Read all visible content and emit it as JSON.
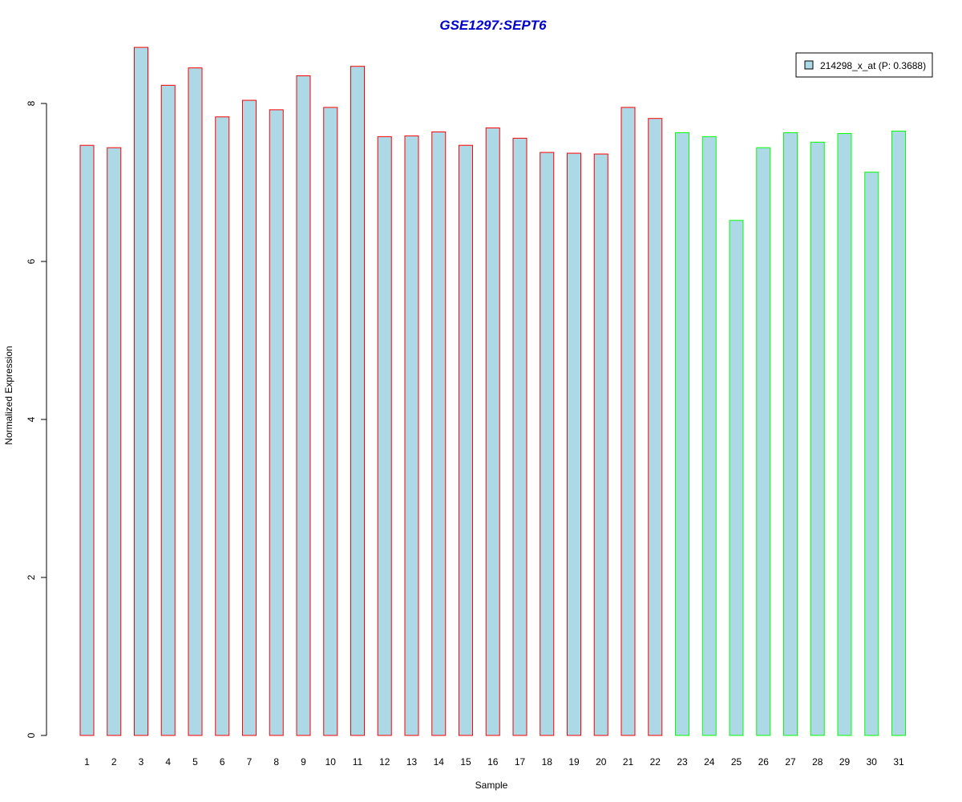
{
  "chart_data": {
    "type": "bar",
    "title": "GSE1297:SEPT6",
    "xlabel": "Sample",
    "ylabel": "Normalized Expression",
    "ylim": [
      0,
      8.7
    ],
    "yticks": [
      0,
      2,
      4,
      6,
      8
    ],
    "categories": [
      "1",
      "2",
      "3",
      "4",
      "5",
      "6",
      "7",
      "8",
      "9",
      "10",
      "11",
      "12",
      "13",
      "14",
      "15",
      "16",
      "17",
      "18",
      "19",
      "20",
      "21",
      "22",
      "23",
      "24",
      "25",
      "26",
      "27",
      "28",
      "29",
      "30",
      "31"
    ],
    "series": [
      {
        "name": "214298_x_at (P: 0.3688)",
        "values": [
          7.47,
          7.44,
          8.71,
          8.23,
          8.45,
          7.83,
          8.04,
          7.92,
          8.35,
          7.95,
          8.47,
          7.58,
          7.59,
          7.64,
          7.47,
          7.69,
          7.56,
          7.38,
          7.37,
          7.36,
          7.95,
          7.81,
          7.63,
          7.58,
          6.52,
          7.44,
          7.63,
          7.51,
          7.62,
          7.13,
          7.65
        ]
      }
    ],
    "groups": [
      "red",
      "red",
      "red",
      "red",
      "red",
      "red",
      "red",
      "red",
      "red",
      "red",
      "red",
      "red",
      "red",
      "red",
      "red",
      "red",
      "red",
      "red",
      "red",
      "red",
      "red",
      "red",
      "green",
      "green",
      "green",
      "green",
      "green",
      "green",
      "green",
      "green",
      "green"
    ],
    "fill_color": "#add8e6",
    "border_colors": {
      "red": "#ff0000",
      "green": "#00ff00"
    },
    "title_color": "#0000cc",
    "legend": {
      "label": "214298_x_at (P: 0.3688)",
      "position": "top-right"
    },
    "grid": false
  }
}
